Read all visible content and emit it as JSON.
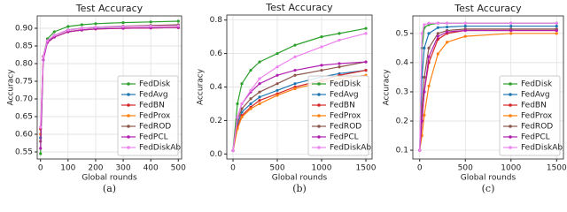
{
  "chart_data": [
    {
      "type": "line",
      "title": "Test Accuracy",
      "xlabel": "Global rounds",
      "ylabel": "Accuracy",
      "caption": "(a)",
      "x": [
        0,
        10,
        25,
        50,
        100,
        150,
        200,
        300,
        400,
        500
      ],
      "series": [
        {
          "name": "FedDisk",
          "color": "#2ca02c",
          "values": [
            0.545,
            0.82,
            0.87,
            0.89,
            0.905,
            0.91,
            0.913,
            0.916,
            0.918,
            0.92
          ]
        },
        {
          "name": "FedAvg",
          "color": "#1f77b4",
          "values": [
            0.59,
            0.82,
            0.86,
            0.88,
            0.895,
            0.9,
            0.902,
            0.905,
            0.906,
            0.907
          ]
        },
        {
          "name": "FedBN",
          "color": "#d62728",
          "values": [
            0.615,
            0.82,
            0.86,
            0.875,
            0.89,
            0.895,
            0.898,
            0.9,
            0.901,
            0.902
          ]
        },
        {
          "name": "FedProx",
          "color": "#ff7f0e",
          "values": [
            0.6,
            0.82,
            0.86,
            0.875,
            0.89,
            0.895,
            0.898,
            0.9,
            0.901,
            0.902
          ]
        },
        {
          "name": "FedROD",
          "color": "#8c564b",
          "values": [
            0.58,
            0.82,
            0.865,
            0.88,
            0.895,
            0.9,
            0.903,
            0.906,
            0.908,
            0.91
          ]
        },
        {
          "name": "FedPCL",
          "color": "#b01fb0",
          "values": [
            0.56,
            0.81,
            0.86,
            0.875,
            0.89,
            0.895,
            0.898,
            0.9,
            0.901,
            0.902
          ]
        },
        {
          "name": "FedDiskAb",
          "color": "#ee82ee",
          "values": [
            0.62,
            0.82,
            0.865,
            0.88,
            0.895,
            0.9,
            0.903,
            0.905,
            0.906,
            0.907
          ]
        }
      ],
      "xlim": [
        -12,
        512
      ],
      "ylim": [
        0.53,
        0.935
      ],
      "xticks": [
        0,
        100,
        200,
        300,
        400,
        500
      ],
      "yticks": [
        0.55,
        {
          "value": 0.6,
          "label": "0.60"
        },
        0.65,
        {
          "value": 0.7,
          "label": "0.70"
        },
        0.75,
        {
          "value": 0.8,
          "label": "0.80"
        },
        0.85,
        {
          "value": 0.9,
          "label": "0.90"
        }
      ],
      "grid": true,
      "legend": "lower right"
    },
    {
      "type": "line",
      "title": "Test Accuracy",
      "xlabel": "Global rounds",
      "ylabel": "Accuracy",
      "caption": "(b)",
      "x": [
        0,
        50,
        100,
        200,
        300,
        500,
        700,
        1000,
        1200,
        1500
      ],
      "series": [
        {
          "name": "FedDisk",
          "color": "#2ca02c",
          "values": [
            0.02,
            0.3,
            0.42,
            0.5,
            0.55,
            0.6,
            0.65,
            0.7,
            0.72,
            0.75
          ]
        },
        {
          "name": "FedAvg",
          "color": "#1f77b4",
          "values": [
            0.02,
            0.18,
            0.25,
            0.3,
            0.34,
            0.38,
            0.42,
            0.46,
            0.48,
            0.5
          ]
        },
        {
          "name": "FedBN",
          "color": "#d62728",
          "values": [
            0.02,
            0.16,
            0.23,
            0.28,
            0.32,
            0.36,
            0.4,
            0.44,
            0.47,
            0.5
          ]
        },
        {
          "name": "FedProx",
          "color": "#ff7f0e",
          "values": [
            0.02,
            0.15,
            0.22,
            0.27,
            0.3,
            0.35,
            0.39,
            0.43,
            0.45,
            0.47
          ]
        },
        {
          "name": "FedROD",
          "color": "#8c564b",
          "values": [
            0.02,
            0.2,
            0.27,
            0.33,
            0.37,
            0.42,
            0.47,
            0.5,
            0.52,
            0.55
          ]
        },
        {
          "name": "FedPCL",
          "color": "#b01fb0",
          "values": [
            0.02,
            0.22,
            0.3,
            0.37,
            0.42,
            0.47,
            0.5,
            0.53,
            0.54,
            0.55
          ]
        },
        {
          "name": "FedDiskAb",
          "color": "#ee82ee",
          "values": [
            0.02,
            0.22,
            0.3,
            0.38,
            0.45,
            0.52,
            0.58,
            0.64,
            0.68,
            0.72
          ]
        }
      ],
      "xlim": [
        -70,
        1570
      ],
      "ylim": [
        -0.03,
        0.83
      ],
      "xticks": [
        0,
        500,
        1000,
        1500
      ],
      "yticks": [
        {
          "value": 0,
          "label": "0.0"
        },
        0.2,
        0.4,
        0.6,
        0.8
      ],
      "grid": true,
      "legend": "lower right"
    },
    {
      "type": "line",
      "title": "Test Accuracy",
      "xlabel": "Global rounds",
      "ylabel": "Accuracy",
      "caption": "(c)",
      "x": [
        0,
        25,
        50,
        100,
        200,
        300,
        500,
        1000,
        1500
      ],
      "series": [
        {
          "name": "FedDisk",
          "color": "#2ca02c",
          "values": [
            0.1,
            0.45,
            0.52,
            0.53,
            0.535,
            0.535,
            0.535,
            0.535,
            0.535
          ]
        },
        {
          "name": "FedAvg",
          "color": "#1f77b4",
          "values": [
            0.1,
            0.35,
            0.45,
            0.5,
            0.52,
            0.522,
            0.525,
            0.525,
            0.525
          ]
        },
        {
          "name": "FedBN",
          "color": "#d62728",
          "values": [
            0.1,
            0.2,
            0.3,
            0.4,
            0.48,
            0.5,
            0.51,
            0.51,
            0.51
          ]
        },
        {
          "name": "FedProx",
          "color": "#ff7f0e",
          "values": [
            0.1,
            0.15,
            0.22,
            0.32,
            0.43,
            0.47,
            0.49,
            0.5,
            0.5
          ]
        },
        {
          "name": "FedROD",
          "color": "#8c564b",
          "values": [
            0.1,
            0.25,
            0.35,
            0.45,
            0.5,
            0.51,
            0.515,
            0.515,
            0.515
          ]
        },
        {
          "name": "FedPCL",
          "color": "#b01fb0",
          "values": [
            0.1,
            0.2,
            0.3,
            0.42,
            0.49,
            0.505,
            0.51,
            0.51,
            0.51
          ]
        },
        {
          "name": "FedDiskAb",
          "color": "#ee82ee",
          "values": [
            0.1,
            0.5,
            0.53,
            0.535,
            0.535,
            0.535,
            0.535,
            0.535,
            0.535
          ]
        }
      ],
      "xlim": [
        -75,
        1575
      ],
      "ylim": [
        0.07,
        0.56
      ],
      "xticks": [
        0,
        500,
        1000,
        1500
      ],
      "yticks": [
        0.1,
        0.2,
        0.3,
        0.4,
        0.5
      ],
      "grid": true,
      "legend": "lower right"
    }
  ]
}
